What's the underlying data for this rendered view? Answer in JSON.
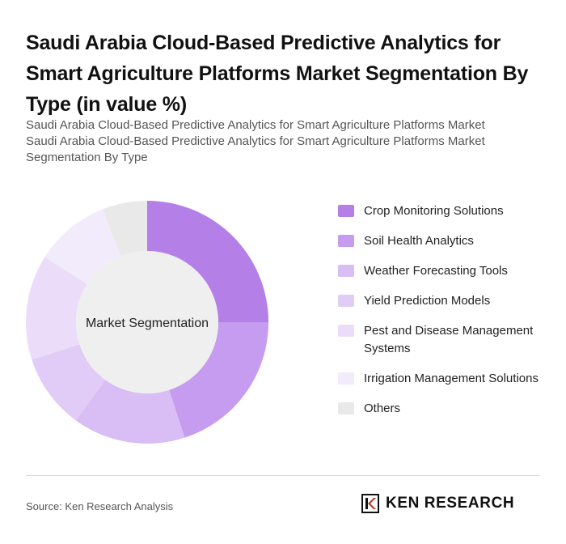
{
  "title": "Saudi Arabia Cloud-Based Predictive Analytics for Smart Agriculture Platforms Market Segmentation By Type (in value %)",
  "subtitle_line1": "Saudi Arabia Cloud-Based Predictive Analytics for Smart Agriculture Platforms Market",
  "subtitle_line2": "Saudi Arabia Cloud-Based Predictive Analytics for Smart Agriculture Platforms Market Segmentation By Type",
  "center_label": "Market Segmentation",
  "source": "Source: Ken Research Analysis",
  "logo": {
    "text": "KEN RESEARCH",
    "icon": "ken-research-logo-icon"
  },
  "chart_data": {
    "type": "pie",
    "donut": true,
    "center_label": "Market Segmentation",
    "legend_position": "right",
    "categories": [
      "Crop Monitoring Solutions",
      "Soil Health Analytics",
      "Weather Forecasting Tools",
      "Yield Prediction Models",
      "Pest and Disease Management Systems",
      "Irrigation Management Solutions",
      "Others"
    ],
    "values": [
      25,
      20,
      15,
      10,
      14,
      10,
      6
    ],
    "colors": [
      "#b47fe6",
      "#c59cef",
      "#d9bdf5",
      "#e1cbf7",
      "#ebddf9",
      "#f2ebfb",
      "#e9e9e9"
    ]
  }
}
